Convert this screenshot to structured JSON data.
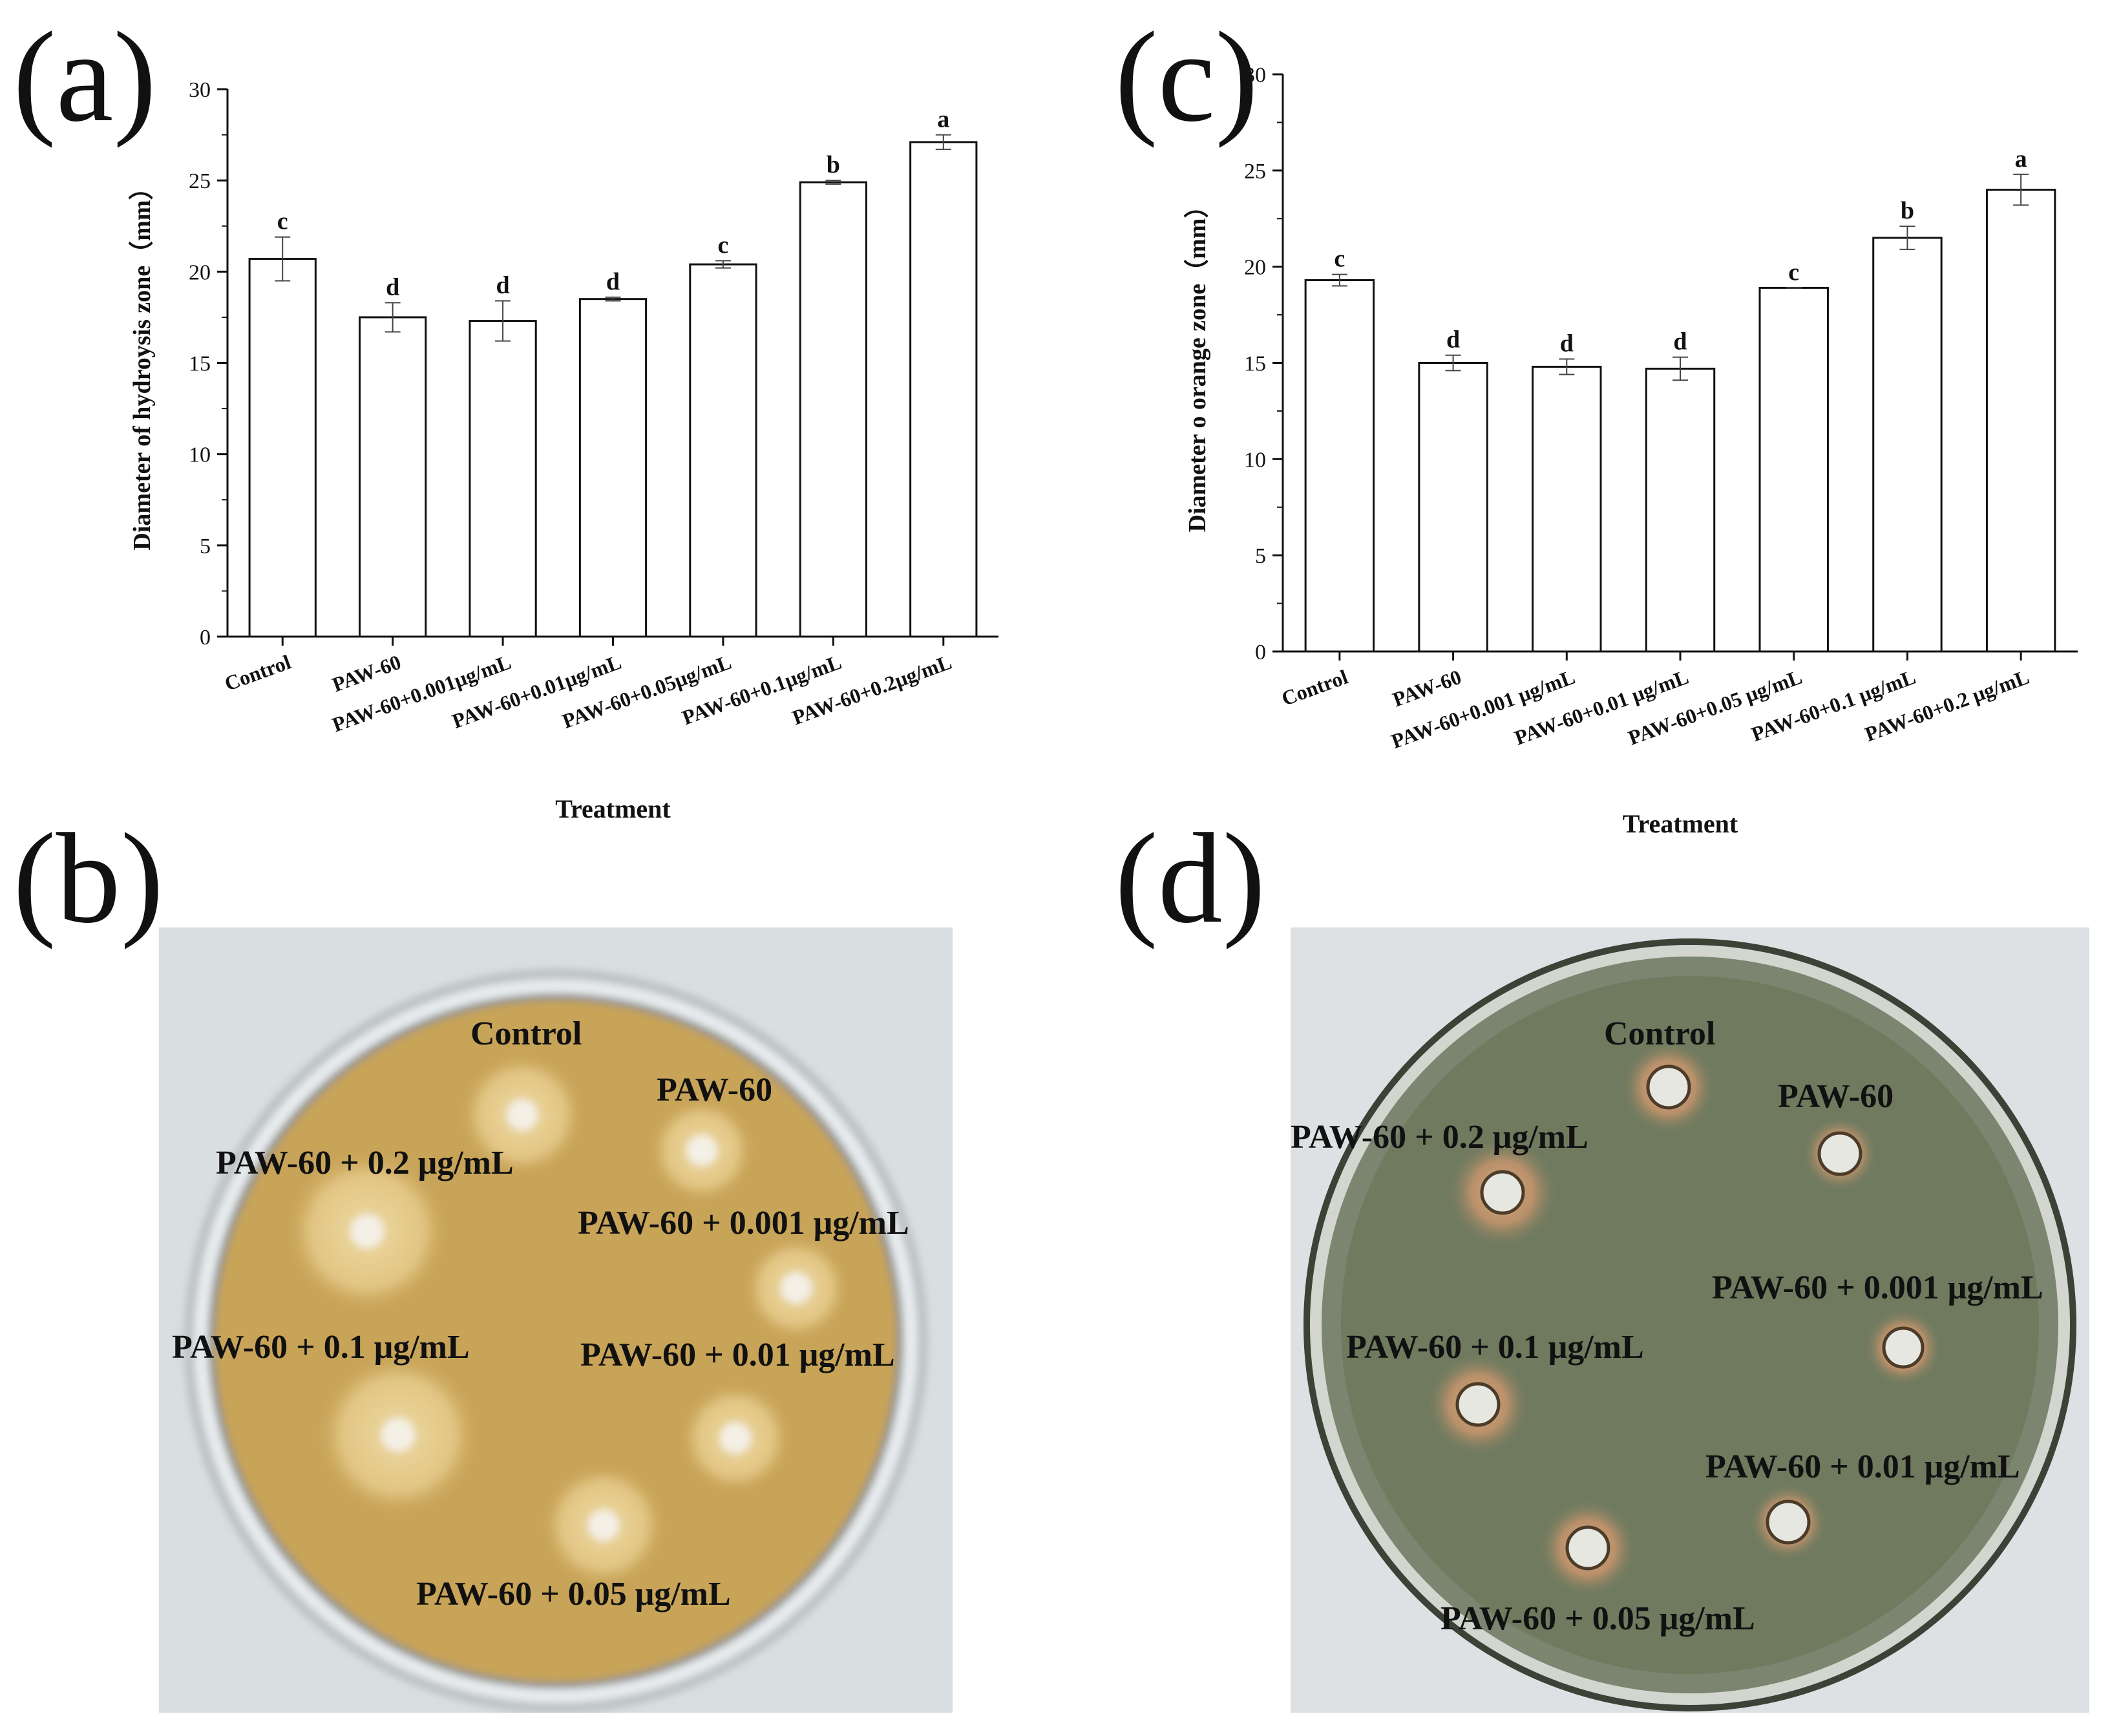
{
  "panels": {
    "a": "(a)",
    "b": "(b)",
    "c": "(c)",
    "d": "(d)"
  },
  "chart_data": [
    {
      "id": "a",
      "type": "bar",
      "xlabel": "Treatment",
      "ylabel": "Diameter of hydroysis zone（mm）",
      "ylim": [
        0,
        30
      ],
      "yticks": [
        0,
        5,
        10,
        15,
        20,
        25,
        30
      ],
      "categories": [
        "Control",
        "PAW-60",
        "PAW-60+0.001μg/mL",
        "PAW-60+0.01μg/mL",
        "PAW-60+0.05μg/mL",
        "PAW-60+0.1μg/mL",
        "PAW-60+0.2μg/mL"
      ],
      "values": [
        20.7,
        17.5,
        17.3,
        18.5,
        20.4,
        24.9,
        27.1
      ],
      "errors": [
        1.2,
        0.8,
        1.1,
        0.1,
        0.2,
        0.1,
        0.4
      ],
      "letters": [
        "c",
        "d",
        "d",
        "d",
        "c",
        "b",
        "a"
      ],
      "bar_fill": "#ffffff",
      "bar_stroke": "#111111",
      "grid": false
    },
    {
      "id": "c",
      "type": "bar",
      "xlabel": "Treatment",
      "ylabel": "Diameter o orange zone（mm）",
      "ylim": [
        0,
        30
      ],
      "yticks": [
        0,
        5,
        10,
        15,
        20,
        25,
        30
      ],
      "categories": [
        "Control",
        "PAW-60",
        "PAW-60+0.001 μg/mL",
        "PAW-60+0.01 μg/mL",
        "PAW-60+0.05 μg/mL",
        "PAW-60+0.1 μg/mL",
        "PAW-60+0.2 μg/mL"
      ],
      "values": [
        19.3,
        15.0,
        14.8,
        14.7,
        18.9,
        21.5,
        24.0
      ],
      "errors": [
        0.3,
        0.4,
        0.4,
        0.6,
        0.0,
        0.6,
        0.8
      ],
      "letters": [
        "c",
        "d",
        "d",
        "d",
        "c",
        "b",
        "a"
      ],
      "bar_fill": "#ffffff",
      "bar_stroke": "#111111",
      "grid": false
    }
  ],
  "plate_b": {
    "agar_color": "#c8a458",
    "labels": {
      "control": "Control",
      "paw60": "PAW-60",
      "c0001": "PAW-60 + 0.001 μg/mL",
      "c001": "PAW-60 + 0.01 μg/mL",
      "c005": "PAW-60 + 0.05 μg/mL",
      "c01": "PAW-60 + 0.1 μg/mL",
      "c02": "PAW-60 + 0.2 μg/mL"
    }
  },
  "plate_d": {
    "agar_color": "#6f7a5f",
    "labels": {
      "control": "Control",
      "paw60": "PAW-60",
      "c0001": "PAW-60 + 0.001 μg/mL",
      "c001": "PAW-60 + 0.01 μg/mL",
      "c005": "PAW-60 + 0.05 μg/mL",
      "c01": "PAW-60 + 0.1 μg/mL",
      "c02": "PAW-60 + 0.2 μg/mL"
    }
  }
}
